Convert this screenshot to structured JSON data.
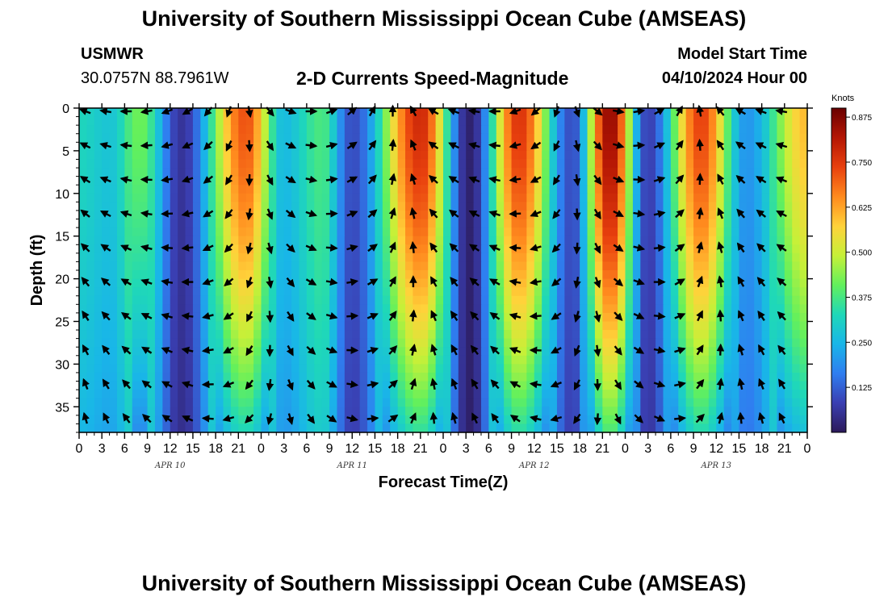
{
  "header": {
    "title": "University of Southern Mississippi Ocean Cube (AMSEAS)",
    "station_id": "USMWR",
    "station_coords": "30.0757N  88.7961W",
    "subtitle": "2-D Currents Speed-Magnitude",
    "model_start_label": "Model Start Time",
    "model_start_value": "04/10/2024 Hour 00"
  },
  "footer": {
    "title": "University of Southern Mississippi Ocean Cube (AMSEAS)"
  },
  "colors": {
    "scale": [
      "#2c1a5a",
      "#3a3fb2",
      "#2f7ef0",
      "#19b6e8",
      "#1fd8b8",
      "#63f05c",
      "#c6f038",
      "#ffd23a",
      "#ff8a1e",
      "#e8400e",
      "#b41604",
      "#6a0000"
    ]
  },
  "chart_data": {
    "type": "heatmap",
    "xlabel": "Forecast Time(Z)",
    "ylabel": "Depth (ft)",
    "x_range_hours": [
      0,
      96
    ],
    "y_range_ft": [
      0,
      38
    ],
    "x_tick_labels": [
      "0",
      "3",
      "6",
      "9",
      "12",
      "15",
      "18",
      "21",
      "0",
      "3",
      "6",
      "9",
      "12",
      "15",
      "18",
      "21",
      "0",
      "3",
      "6",
      "9",
      "12",
      "15",
      "18",
      "21",
      "0",
      "3",
      "6",
      "9",
      "12",
      "15",
      "18",
      "21",
      "0"
    ],
    "day_labels": [
      "APR 10",
      "APR 11",
      "APR 12",
      "APR 13"
    ],
    "y_ticks": [
      "0",
      "5",
      "10",
      "15",
      "20",
      "25",
      "30",
      "35"
    ],
    "y_tick_values": [
      0,
      5,
      10,
      15,
      20,
      25,
      30,
      35
    ],
    "colorbar": {
      "unit": "Knots",
      "min": 0.0,
      "max": 0.9,
      "tick_values": [
        0.125,
        0.25,
        0.375,
        0.5,
        0.625,
        0.75,
        0.875
      ],
      "tick_labels": [
        "0.125",
        "0.250",
        "0.375",
        "0.500",
        "0.625",
        "0.750",
        "0.875"
      ]
    },
    "speed_peaks": [
      {
        "hour": 0,
        "speed": 0.32
      },
      {
        "hour": 4,
        "speed": 0.28
      },
      {
        "hour": 8,
        "speed": 0.42
      },
      {
        "hour": 13.5,
        "speed": 0.06
      },
      {
        "hour": 22,
        "speed": 0.72
      },
      {
        "hour": 27,
        "speed": 0.26
      },
      {
        "hour": 32,
        "speed": 0.38
      },
      {
        "hour": 36,
        "speed": 0.1
      },
      {
        "hour": 45,
        "speed": 0.78
      },
      {
        "hour": 51.5,
        "speed": 0.02
      },
      {
        "hour": 58,
        "speed": 0.76
      },
      {
        "hour": 65,
        "speed": 0.1
      },
      {
        "hour": 70,
        "speed": 0.86
      },
      {
        "hour": 75,
        "speed": 0.08
      },
      {
        "hour": 82,
        "speed": 0.74
      },
      {
        "hour": 88,
        "speed": 0.2
      },
      {
        "hour": 96,
        "speed": 0.6
      }
    ],
    "vectors": {
      "times_hours": [
        0,
        2.7,
        5.4,
        8.1,
        10.8,
        13.5,
        16.2,
        18.9,
        21.6,
        24.3,
        27,
        29.7,
        32.4,
        35.1,
        37.8,
        40.5,
        43.2,
        45.9,
        48.6,
        51.3,
        54,
        56.7,
        59.4,
        62.1,
        64.8,
        67.5,
        70.2,
        72.9,
        75.6,
        78.3,
        81,
        83.7,
        86.4,
        89.1,
        91.8
      ],
      "depths_ft": [
        0,
        4,
        8,
        12,
        16,
        20,
        24,
        28,
        32,
        36
      ],
      "direction_pattern_deg": [
        200,
        190,
        180,
        170,
        160,
        150,
        130,
        110,
        80,
        50,
        20,
        0,
        340,
        320,
        300,
        270,
        240,
        210,
        200,
        190,
        180,
        160,
        140,
        110,
        70,
        40,
        10,
        350,
        330,
        300,
        260,
        230,
        210,
        200,
        190
      ]
    }
  }
}
